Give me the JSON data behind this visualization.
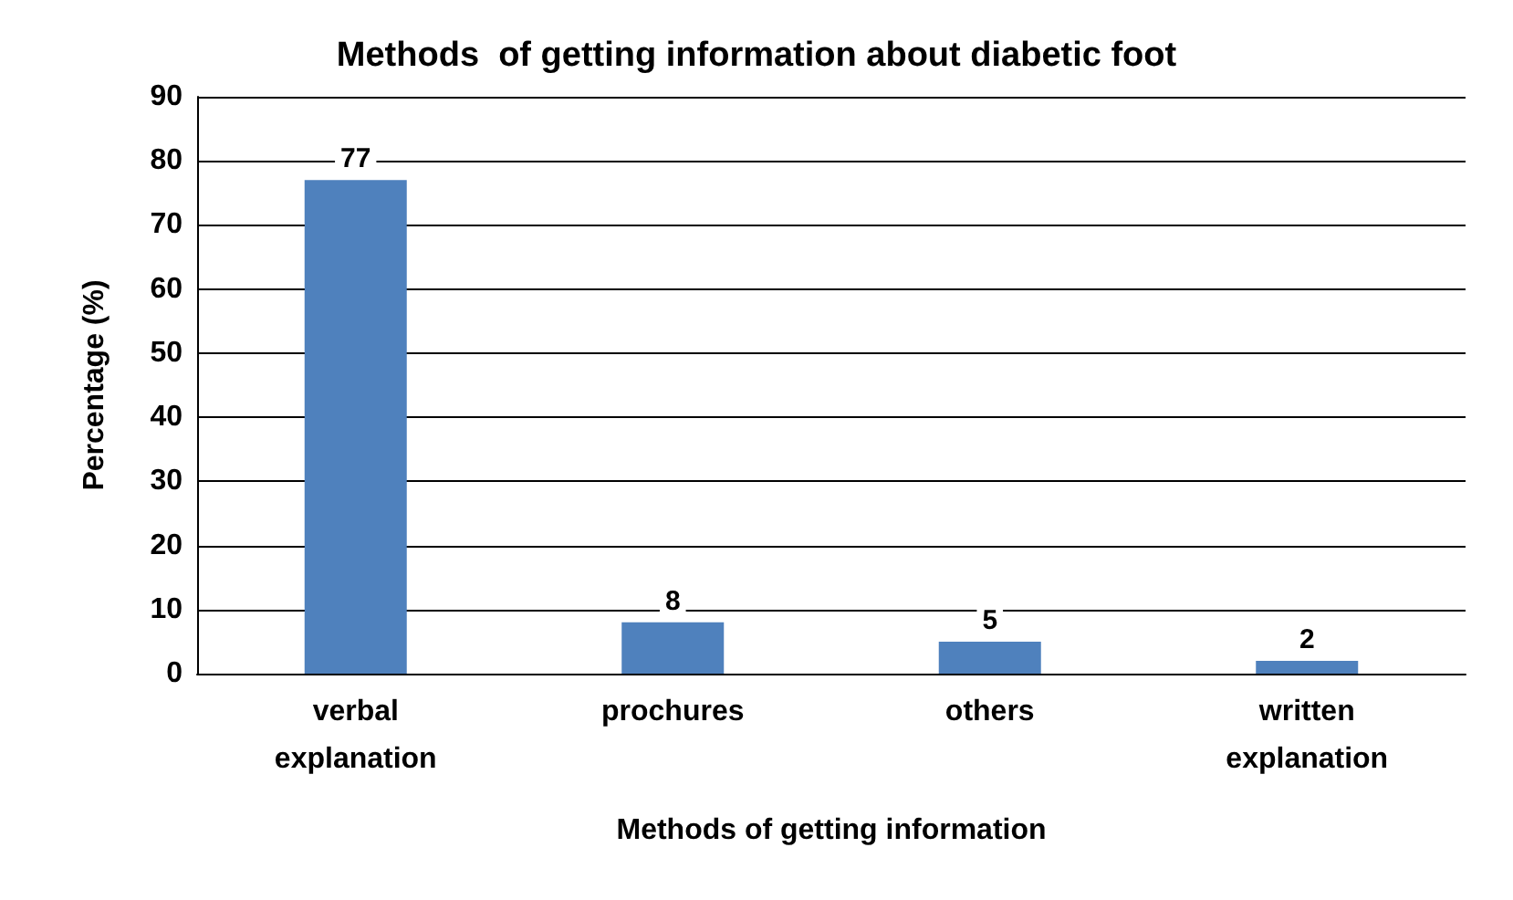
{
  "chart_data": {
    "type": "bar",
    "title": "Methods  of getting information about diabetic foot",
    "xlabel": "Methods of getting information",
    "ylabel": "Percentage (%)",
    "categories": [
      "verbal explanation",
      "prochures",
      "others",
      "written explanation"
    ],
    "values": [
      77,
      8,
      5,
      2
    ],
    "color": "#4f81bd",
    "ylim": [
      0,
      90
    ],
    "yticks": [
      0,
      10,
      20,
      30,
      40,
      50,
      60,
      70,
      80,
      90
    ],
    "grid": "y",
    "data_labels": true
  }
}
